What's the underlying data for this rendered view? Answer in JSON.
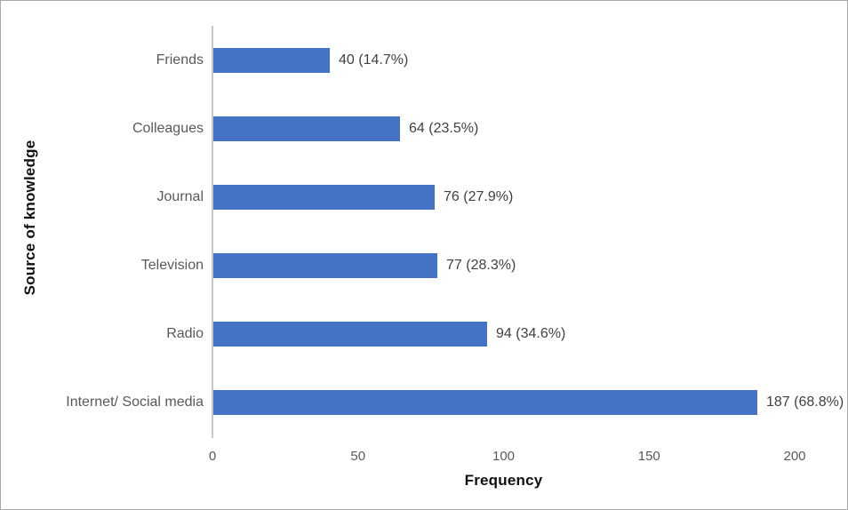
{
  "chart_data": {
    "type": "bar",
    "orientation": "horizontal",
    "title": "",
    "xlabel": "Frequency",
    "ylabel": "Source of knowledge",
    "categories": [
      "Friends",
      "Colleagues",
      "Journal",
      "Television",
      "Radio",
      "Internet/ Social media"
    ],
    "values": [
      40,
      64,
      76,
      77,
      94,
      187
    ],
    "data_labels": [
      "40 (14.7%)",
      "64 (23.5%)",
      "76 (27.9%)",
      "77 (28.3%)",
      "94 (34.6%)",
      "187 (68.8%)"
    ],
    "x_ticks": [
      0,
      50,
      100,
      150,
      200
    ],
    "xlim": [
      0,
      200
    ],
    "bar_color": "#4472C4",
    "grid": false,
    "legend": false,
    "label_color": "#595959",
    "data_label_color": "#404040"
  }
}
